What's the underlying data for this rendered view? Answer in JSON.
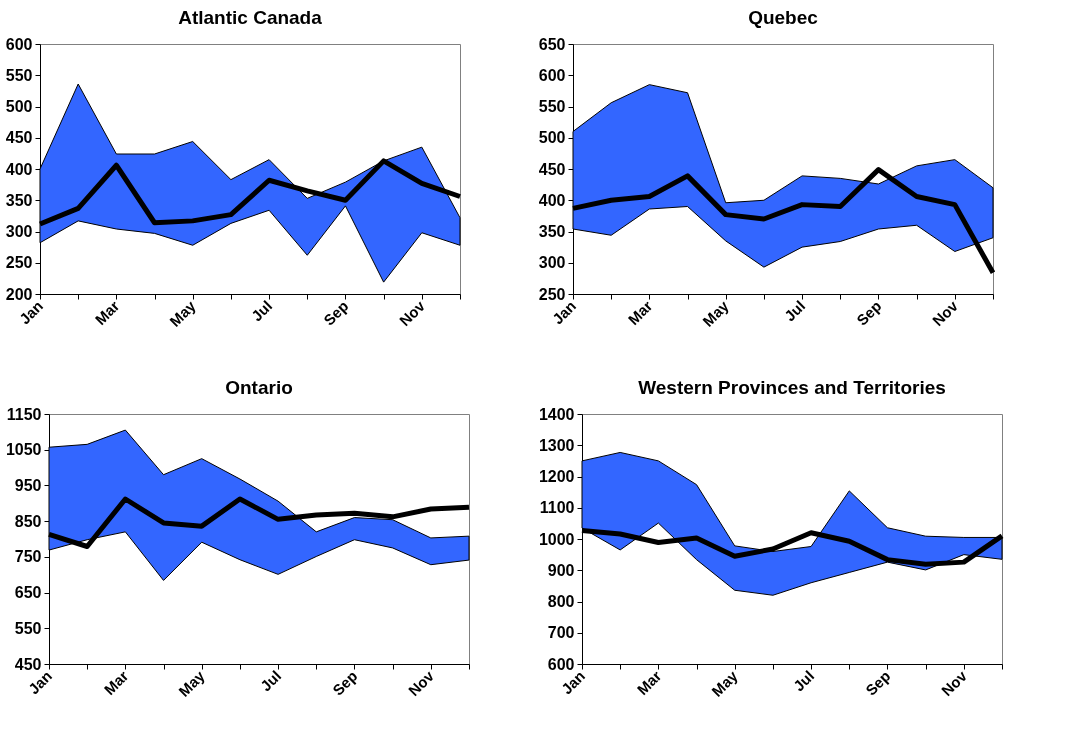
{
  "chart_data": [
    {
      "type": "line",
      "title": "Atlantic Canada",
      "categories": [
        "Jan",
        null,
        "Mar",
        null,
        "May",
        null,
        "Jul",
        null,
        "Sep",
        null,
        "Nov",
        null
      ],
      "ylim": [
        200,
        600
      ],
      "yticks": [
        200,
        250,
        300,
        350,
        400,
        450,
        500,
        550,
        600
      ],
      "grid": false,
      "series": [
        {
          "color": "#000000",
          "values": [
            312,
            337,
            406,
            314,
            317,
            327,
            382,
            365,
            350,
            413,
            377,
            356
          ],
          "lower": [
            282,
            317,
            304,
            297,
            278,
            313,
            334,
            262,
            341,
            219,
            298,
            278
          ],
          "upper": [
            400,
            536,
            424,
            424,
            444,
            383,
            415,
            353,
            379,
            413,
            435,
            322
          ]
        }
      ]
    },
    {
      "type": "line",
      "title": "Quebec",
      "categories": [
        "Jan",
        null,
        "Mar",
        null,
        "May",
        null,
        "Jul",
        null,
        "Sep",
        null,
        "Nov",
        null
      ],
      "ylim": [
        250,
        650
      ],
      "yticks": [
        250,
        300,
        350,
        400,
        450,
        500,
        550,
        600,
        650
      ],
      "grid": false,
      "series": [
        {
          "color": "#000000",
          "values": [
            387,
            400,
            406,
            439,
            377,
            370,
            393,
            390,
            449,
            406,
            393,
            284
          ],
          "lower": [
            354,
            344,
            386,
            390,
            335,
            293,
            325,
            334,
            354,
            360,
            318,
            340
          ],
          "upper": [
            510,
            556,
            585,
            572,
            396,
            400,
            439,
            435,
            426,
            455,
            465,
            420
          ]
        }
      ]
    },
    {
      "type": "line",
      "title": "Ontario",
      "categories": [
        "Jan",
        null,
        "Mar",
        null,
        "May",
        null,
        "Jul",
        null,
        "Sep",
        null,
        "Nov",
        null
      ],
      "ylim": [
        450,
        1150
      ],
      "yticks": [
        450,
        550,
        650,
        750,
        850,
        950,
        1050,
        1150
      ],
      "grid": false,
      "series": [
        {
          "color": "#000000",
          "values": [
            813,
            779,
            912,
            845,
            836,
            912,
            855,
            867,
            872,
            862,
            884,
            889
          ],
          "lower": [
            769,
            798,
            820,
            684,
            791,
            742,
            701,
            751,
            798,
            775,
            728,
            741
          ],
          "upper": [
            1057,
            1065,
            1105,
            980,
            1025,
            968,
            906,
            820,
            860,
            854,
            803,
            808
          ]
        }
      ]
    },
    {
      "type": "line",
      "title": "Western Provinces and Territories",
      "categories": [
        "Jan",
        null,
        "Mar",
        null,
        "May",
        null,
        "Jul",
        null,
        "Sep",
        null,
        "Nov",
        null
      ],
      "ylim": [
        600,
        1400
      ],
      "yticks": [
        600,
        700,
        800,
        900,
        1000,
        1100,
        1200,
        1300,
        1400
      ],
      "grid": false,
      "series": [
        {
          "color": "#000000",
          "values": [
            1027,
            1016,
            989,
            1003,
            945,
            968,
            1020,
            993,
            934,
            919,
            926,
            1010
          ],
          "lower": [
            1035,
            965,
            1051,
            934,
            836,
            820,
            860,
            893,
            926,
            901,
            950,
            935
          ],
          "upper": [
            1250,
            1277,
            1250,
            1174,
            978,
            960,
            976,
            1154,
            1036,
            1009,
            1005,
            1005
          ]
        }
      ]
    }
  ]
}
